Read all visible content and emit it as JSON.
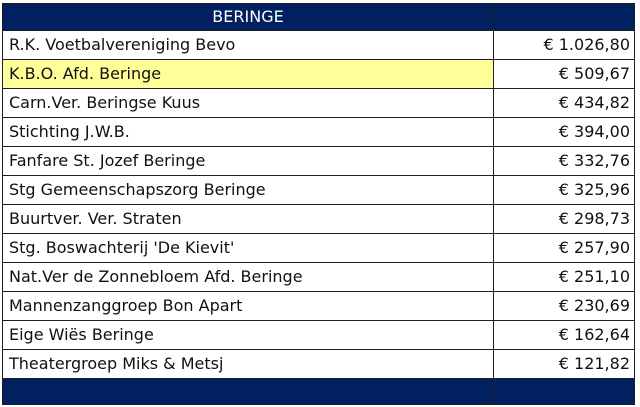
{
  "header": {
    "title": "BERINGE",
    "color": "#002060"
  },
  "highlight_color": "#ffff99",
  "rows": [
    {
      "name": "R.K. Voetbalvereniging Bevo",
      "amount": "€ 1.026,80"
    },
    {
      "name": "K.B.O. Afd. Beringe",
      "amount": "€ 509,67",
      "highlighted": true
    },
    {
      "name": "Carn.Ver. Beringse Kuus",
      "amount": "€ 434,82"
    },
    {
      "name": "Stichting J.W.B.",
      "amount": "€ 394,00"
    },
    {
      "name": "Fanfare St. Jozef Beringe",
      "amount": "€ 332,76"
    },
    {
      "name": "Stg Gemeenschapszorg Beringe",
      "amount": "€ 325,96"
    },
    {
      "name": "Buurtver. Ver. Straten",
      "amount": "€ 298,73"
    },
    {
      "name": "Stg. Boswachterij 'De Kievit'",
      "amount": "€ 257,90"
    },
    {
      "name": "Nat.Ver de Zonnebloem Afd. Beringe",
      "amount": "€ 251,10"
    },
    {
      "name": "Mannenzanggroep Bon Apart",
      "amount": "€ 230,69"
    },
    {
      "name": "Eige Wiës Beringe",
      "amount": "€ 162,64"
    },
    {
      "name": "Theatergroep Miks & Metsj",
      "amount": "€ 121,82"
    }
  ]
}
